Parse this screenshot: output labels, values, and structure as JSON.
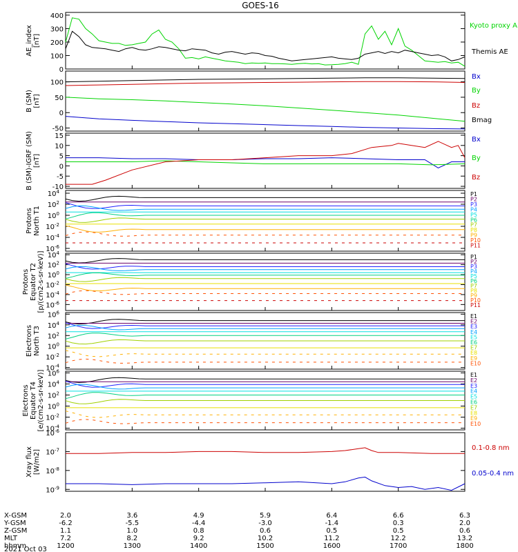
{
  "title": "GOES-16",
  "colors": {
    "black": "#000000",
    "green": "#00d400",
    "red": "#cc0000",
    "blue": "#0000cc",
    "band": [
      "#000000",
      "#6a006a",
      "#2020ff",
      "#00a0ff",
      "#00e0e0",
      "#00d080",
      "#a0d000",
      "#e8e000",
      "#ffb000",
      "#ff5000",
      "#cc0000"
    ]
  },
  "x_axis": {
    "rows": [
      {
        "label": "X-GSM",
        "values": [
          "2.0",
          "3.6",
          "4.9",
          "5.9",
          "6.4",
          "6.6",
          "6.3"
        ]
      },
      {
        "label": "Y-GSM",
        "values": [
          "-6.2",
          "-5.5",
          "-4.4",
          "-3.0",
          "-1.4",
          "0.3",
          "2.0"
        ]
      },
      {
        "label": "Z-GSM",
        "values": [
          "1.1",
          "1.0",
          "0.8",
          "0.6",
          "0.5",
          "0.5",
          "0.6"
        ]
      },
      {
        "label": "MLT",
        "values": [
          "7.2",
          "8.2",
          "9.2",
          "10.2",
          "11.2",
          "12.2",
          "13.2"
        ]
      },
      {
        "label": "hhmm",
        "values": [
          "1200",
          "1300",
          "1400",
          "1500",
          "1600",
          "1700",
          "1800"
        ]
      }
    ],
    "date": "2021 Oct 03"
  },
  "chart_data": [
    {
      "type": "line",
      "ylabel": "AE_index [nT]",
      "yticks": [
        "0",
        "100",
        "200",
        "300",
        "400"
      ],
      "ylim": [
        0,
        420
      ],
      "legend": [
        "Kyoto proxy AE",
        "Themis AE"
      ],
      "series": [
        {
          "name": "Kyoto proxy AE",
          "color": "green",
          "x": [
            12.0,
            12.1,
            12.2,
            12.3,
            12.4,
            12.5,
            12.6,
            12.7,
            12.8,
            12.9,
            13.0,
            13.1,
            13.2,
            13.3,
            13.4,
            13.5,
            13.6,
            13.7,
            13.8,
            13.9,
            14.0,
            14.1,
            14.2,
            14.3,
            14.4,
            14.5,
            14.6,
            14.7,
            14.8,
            14.9,
            15.0,
            15.1,
            15.2,
            15.3,
            15.4,
            15.5,
            15.6,
            15.7,
            15.8,
            15.9,
            16.0,
            16.1,
            16.2,
            16.3,
            16.4,
            16.5,
            16.6,
            16.7,
            16.8,
            16.9,
            17.0,
            17.1,
            17.2,
            17.3,
            17.4,
            17.5,
            17.6,
            17.7,
            17.8,
            17.9,
            18.0
          ],
          "y": [
            200,
            380,
            370,
            300,
            260,
            210,
            200,
            190,
            190,
            175,
            180,
            190,
            200,
            260,
            290,
            220,
            200,
            150,
            80,
            85,
            75,
            90,
            80,
            70,
            60,
            55,
            50,
            40,
            45,
            42,
            45,
            40,
            40,
            38,
            35,
            40,
            42,
            38,
            40,
            30,
            32,
            35,
            40,
            50,
            35,
            260,
            320,
            220,
            280,
            180,
            300,
            170,
            140,
            100,
            60,
            55,
            50,
            55,
            45,
            50,
            20
          ]
        },
        {
          "name": "Themis AE",
          "color": "black",
          "x": [
            12.0,
            12.1,
            12.2,
            12.3,
            12.4,
            12.5,
            12.6,
            12.7,
            12.8,
            12.9,
            13.0,
            13.1,
            13.2,
            13.3,
            13.4,
            13.5,
            13.6,
            13.7,
            13.8,
            13.9,
            14.0,
            14.1,
            14.2,
            14.3,
            14.4,
            14.5,
            14.6,
            14.7,
            14.8,
            14.9,
            15.0,
            15.1,
            15.2,
            15.3,
            15.4,
            15.5,
            15.6,
            15.7,
            15.8,
            15.9,
            16.0,
            16.1,
            16.2,
            16.3,
            16.4,
            16.5,
            16.6,
            16.7,
            16.8,
            16.9,
            17.0,
            17.1,
            17.2,
            17.3,
            17.4,
            17.5,
            17.6,
            17.7,
            17.8,
            17.9,
            18.0
          ],
          "y": [
            150,
            280,
            240,
            180,
            160,
            155,
            150,
            140,
            130,
            150,
            160,
            145,
            140,
            150,
            165,
            160,
            150,
            140,
            135,
            150,
            145,
            140,
            120,
            110,
            125,
            130,
            120,
            110,
            120,
            115,
            100,
            95,
            80,
            70,
            60,
            65,
            70,
            75,
            80,
            85,
            90,
            80,
            75,
            70,
            80,
            110,
            120,
            130,
            115,
            130,
            120,
            140,
            130,
            120,
            110,
            100,
            105,
            90,
            60,
            70,
            90
          ]
        }
      ]
    },
    {
      "type": "line",
      "ylabel": "B (SM) [nT]",
      "yticks": [
        "-50",
        "0",
        "50",
        "100"
      ],
      "ylim": [
        -60,
        135
      ],
      "legend": [
        "Bx",
        "By",
        "Bz",
        "Bmag"
      ],
      "series": [
        {
          "name": "Bx",
          "color": "blue",
          "x": [
            12.0,
            12.5,
            13.0,
            13.5,
            14.0,
            14.5,
            15.0,
            15.5,
            16.0,
            16.5,
            17.0,
            17.5,
            18.0
          ],
          "y": [
            -12,
            -20,
            -25,
            -29,
            -33,
            -36,
            -39,
            -42,
            -45,
            -48,
            -50,
            -52,
            -53
          ]
        },
        {
          "name": "By",
          "color": "green",
          "x": [
            12.0,
            12.5,
            13.0,
            13.5,
            14.0,
            14.5,
            15.0,
            15.5,
            16.0,
            16.5,
            17.0,
            17.5,
            18.0
          ],
          "y": [
            50,
            45,
            42,
            38,
            33,
            28,
            22,
            15,
            8,
            0,
            -8,
            -18,
            -28
          ]
        },
        {
          "name": "Bz",
          "color": "red",
          "x": [
            12.0,
            12.5,
            13.0,
            13.5,
            14.0,
            14.5,
            15.0,
            15.5,
            16.0,
            16.5,
            17.0,
            17.5,
            18.0
          ],
          "y": [
            88,
            90,
            92,
            94,
            96,
            97,
            98,
            99,
            100,
            101,
            101,
            100,
            98
          ]
        },
        {
          "name": "Bmag",
          "color": "black",
          "x": [
            12.0,
            12.5,
            13.0,
            13.5,
            14.0,
            14.5,
            15.0,
            15.5,
            16.0,
            16.5,
            17.0,
            17.5,
            18.0
          ],
          "y": [
            100,
            102,
            104,
            106,
            108,
            109,
            110,
            111,
            112,
            113,
            113,
            112,
            111
          ]
        }
      ]
    },
    {
      "type": "line",
      "ylabel": "B (SM)-IGRF (SM) [nT]",
      "yticks": [
        "-10",
        "-5",
        "0",
        "5",
        "10",
        "15"
      ],
      "ylim": [
        -11,
        16
      ],
      "legend": [
        "Bx",
        "By",
        "Bz"
      ],
      "series": [
        {
          "name": "Bx",
          "color": "blue",
          "x": [
            12.0,
            12.5,
            13.0,
            13.5,
            14.0,
            14.5,
            15.0,
            15.5,
            16.0,
            16.5,
            17.0,
            17.2,
            17.4,
            17.5,
            17.6,
            17.8,
            18.0
          ],
          "y": [
            4,
            4,
            3.5,
            3.5,
            3,
            3,
            3.5,
            3.5,
            4,
            3.5,
            3,
            3,
            3,
            1,
            -1,
            2,
            2
          ]
        },
        {
          "name": "By",
          "color": "green",
          "x": [
            12.0,
            12.5,
            13.0,
            13.5,
            14.0,
            14.5,
            15.0,
            15.5,
            16.0,
            16.5,
            17.0,
            17.5,
            18.0
          ],
          "y": [
            2,
            2,
            2,
            2.5,
            2,
            1.5,
            1,
            1,
            1,
            1,
            1,
            0.5,
            1
          ]
        },
        {
          "name": "Bz",
          "color": "red",
          "x": [
            12.0,
            12.4,
            12.6,
            13.0,
            13.5,
            14.0,
            14.5,
            15.0,
            15.5,
            16.0,
            16.3,
            16.6,
            16.9,
            17.0,
            17.2,
            17.4,
            17.6,
            17.8,
            17.9,
            18.0
          ],
          "y": [
            -9,
            -9,
            -7,
            -2,
            2,
            3,
            3,
            4,
            5,
            5,
            6,
            9,
            10,
            11,
            10,
            9,
            12,
            9,
            10,
            4
          ]
        }
      ]
    },
    {
      "type": "line",
      "ylabel": "Protons North T1",
      "yscale": "log",
      "yticks": [
        "10-6",
        "10-4",
        "10-2",
        "100",
        "102",
        "104"
      ],
      "ylim": [
        -6.5,
        4.5
      ],
      "legend": [
        "P1",
        "P2",
        "P3",
        "P4",
        "P5",
        "P6",
        "P7",
        "P8",
        "P9",
        "P10",
        "P11"
      ],
      "levels": [
        3.2,
        2.4,
        1.7,
        1.1,
        0.6,
        0.0,
        -0.7,
        -1.6,
        -2.6,
        -3.6,
        -5.0
      ]
    },
    {
      "type": "line",
      "ylabel": "Protons Equator T2 [p/(cm2-s-sr-keV)]",
      "yscale": "log",
      "yticks": [
        "10-6",
        "10-4",
        "10-2",
        "100",
        "102",
        "104"
      ],
      "ylim": [
        -7.2,
        4.3
      ],
      "legend": [
        "P1",
        "P2",
        "P3",
        "P4",
        "P5",
        "P6",
        "P7",
        "P8",
        "P9",
        "P10",
        "P11"
      ],
      "levels": [
        3.0,
        2.3,
        1.6,
        1.0,
        0.4,
        -0.1,
        -0.8,
        -1.8,
        -2.8,
        -3.8,
        -5.2
      ]
    },
    {
      "type": "line",
      "ylabel": "Electrons North T3",
      "yscale": "log",
      "yticks": [
        "10-4",
        "10-2",
        "100",
        "102",
        "104",
        "106"
      ],
      "ylim": [
        -4.3,
        6.3
      ],
      "legend": [
        "E1",
        "E2",
        "E3",
        "E4",
        "E5",
        "E6",
        "E7",
        "E8",
        "E9",
        "E10"
      ],
      "levels": [
        4.8,
        4.3,
        3.8,
        3.3,
        2.7,
        2.0,
        1.0,
        -0.3,
        -1.5,
        -3.0
      ]
    },
    {
      "type": "line",
      "ylabel": "Electrons Equator T4 [e/(cm2-s-sr-keV)]",
      "yscale": "log",
      "yticks": [
        "10-4",
        "10-2",
        "100",
        "102",
        "104",
        "106"
      ],
      "ylim": [
        -4.3,
        6.3
      ],
      "legend": [
        "E1",
        "E2",
        "E3",
        "E4",
        "E5",
        "E6",
        "E7",
        "E8",
        "E9",
        "E10"
      ],
      "levels": [
        4.9,
        4.4,
        3.9,
        3.3,
        2.7,
        2.0,
        1.0,
        -0.3,
        -1.6,
        -3.0
      ]
    },
    {
      "type": "line",
      "ylabel": "Xray flux [W/m2]",
      "yscale": "log",
      "yticks": [
        "10-9",
        "10-8",
        "10-7",
        "10-6"
      ],
      "ylim": [
        -9.1,
        -6.0
      ],
      "legend": [
        "0.1-0.8 nm",
        "0.05-0.4 nm"
      ],
      "series": [
        {
          "name": "0.1-0.8 nm",
          "color": "red",
          "x": [
            12.0,
            12.5,
            13.0,
            13.5,
            14.0,
            14.5,
            15.0,
            15.5,
            16.0,
            16.2,
            16.4,
            16.5,
            16.6,
            16.7,
            17.0,
            17.5,
            18.0
          ],
          "y": [
            -7.1,
            -7.1,
            -7.05,
            -7.05,
            -7.0,
            -7.0,
            -7.05,
            -7.05,
            -7.0,
            -6.95,
            -6.85,
            -6.8,
            -6.95,
            -7.05,
            -7.05,
            -7.1,
            -7.1
          ]
        },
        {
          "name": "0.05-0.4 nm",
          "color": "blue",
          "x": [
            12.0,
            12.5,
            13.0,
            13.5,
            14.0,
            14.5,
            15.0,
            15.5,
            16.0,
            16.2,
            16.4,
            16.5,
            16.6,
            16.8,
            17.0,
            17.2,
            17.4,
            17.6,
            17.8,
            18.0
          ],
          "y": [
            -8.7,
            -8.7,
            -8.75,
            -8.7,
            -8.7,
            -8.7,
            -8.65,
            -8.6,
            -8.7,
            -8.6,
            -8.4,
            -8.35,
            -8.55,
            -8.8,
            -8.9,
            -8.85,
            -9.0,
            -8.9,
            -9.05,
            -8.7
          ]
        }
      ]
    }
  ]
}
